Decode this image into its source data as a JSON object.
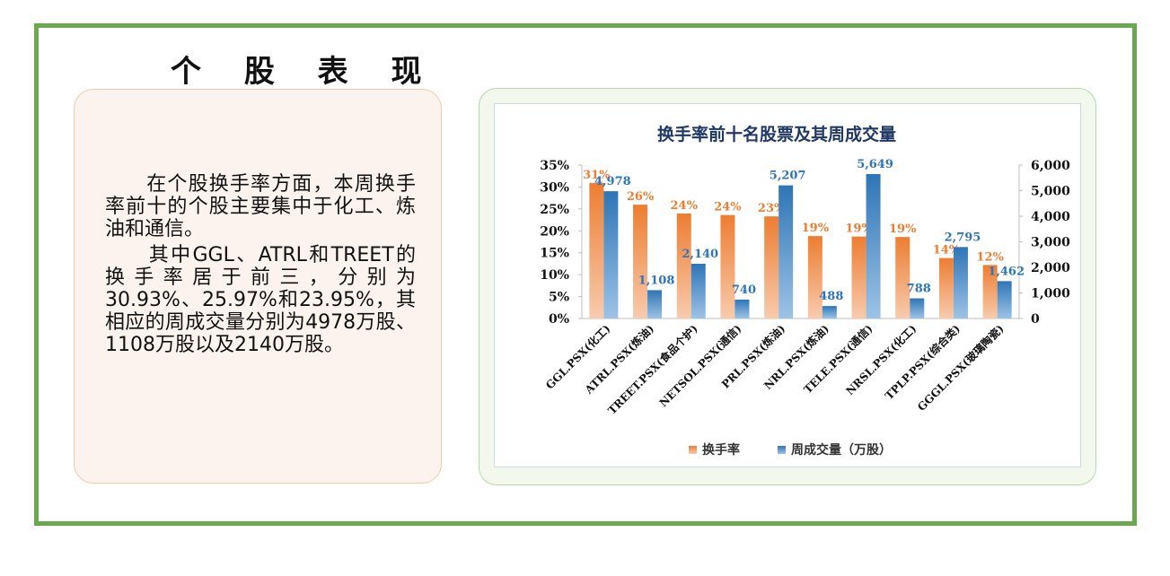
{
  "page_title": "个 股 表 现",
  "paragraphs": [
    "　　在个股换手率方面，本周换手率前十的个股主要集中于化工、炼油和通信。",
    "　　其中GGL、ATRL和TREET的换手率居于前三，分别为30.93%、25.97%和23.95%，其相应的周成交量分别为4978万股、1108万股以及2140万股。"
  ],
  "colors": {
    "frame": "#6aa84f",
    "turnover": "#ed7d31",
    "volume": "#2e75b6",
    "title": "#1f3864"
  },
  "chart_data": {
    "type": "bar",
    "title": "换手率前十名股票及其周成交量",
    "categories": [
      "GGL.PSX(化工)",
      "ATRL.PSX(炼油)",
      "TREET.PSX(食品个护)",
      "NETSOL.PSX(通信)",
      "PRL.PSX(炼油)",
      "NRL.PSX(炼油)",
      "TELE.PSX(通信)",
      "NRSL.PSX(化工)",
      "TPLP.PSX(综合类)",
      "GGGL.PSX(玻璃陶瓷)"
    ],
    "series": [
      {
        "name": "换手率",
        "axis": "left",
        "values": [
          30.93,
          25.97,
          23.95,
          23.6,
          23.3,
          18.8,
          18.7,
          18.6,
          13.8,
          12.2
        ],
        "labels": [
          "31%",
          "26%",
          "24%",
          "24%",
          "23%",
          "19%",
          "19%",
          "19%",
          "14%",
          "12%"
        ]
      },
      {
        "name": "周成交量（万股）",
        "axis": "right",
        "values": [
          4978,
          1108,
          2140,
          740,
          5207,
          488,
          5649,
          788,
          2795,
          1462
        ],
        "labels": [
          "4,978",
          "1,108",
          "2,140",
          "740",
          "5,207",
          "488",
          "5,649",
          "788",
          "2,795",
          "1,462"
        ]
      }
    ],
    "y_left": {
      "min": 0,
      "max": 35,
      "ticks": [
        "0%",
        "5%",
        "10%",
        "15%",
        "20%",
        "25%",
        "30%",
        "35%"
      ]
    },
    "y_right": {
      "min": 0,
      "max": 6000,
      "ticks": [
        "0",
        "1,000",
        "2,000",
        "3,000",
        "4,000",
        "5,000",
        "6,000"
      ]
    },
    "legend_position": "bottom",
    "grid": false
  }
}
